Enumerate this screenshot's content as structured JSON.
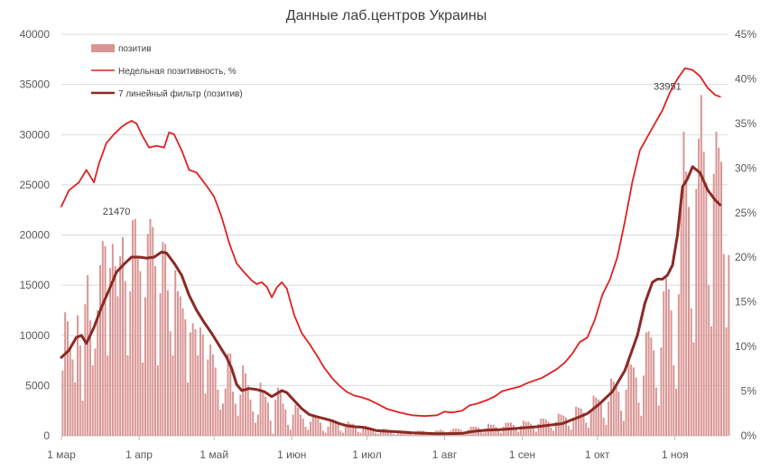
{
  "chart_data": {
    "type": "bar",
    "title": "Данные лаб.центров Украины",
    "x_tick_labels": [
      "1 мар",
      "1 апр",
      "1 май",
      "1 июн",
      "1 июл",
      "1 авг",
      "1 сен",
      "1 окт",
      "1 ноя"
    ],
    "y_left": {
      "ylim": [
        0,
        40000
      ],
      "ticks": [
        "0",
        "5000",
        "10000",
        "15000",
        "20000",
        "25000",
        "30000",
        "35000",
        "40000"
      ]
    },
    "y_right": {
      "ylim": [
        0,
        45
      ],
      "ticks": [
        "0%",
        "5%",
        "10%",
        "15%",
        "20%",
        "25%",
        "30%",
        "35%",
        "40%",
        "45%"
      ]
    },
    "legend": {
      "bars": "позитив",
      "weekly": "Недельная позитивность, %",
      "filter": "7 линейный фильтр (позитив)"
    },
    "colors": {
      "bars": "#d99594",
      "weekly": "#e02020",
      "filter": "#8b2a24",
      "grid": "#d9d9d9"
    },
    "annotations": [
      {
        "day": 22,
        "value": 21470,
        "label": "21470"
      },
      {
        "day": 242,
        "value": 33951,
        "label": "33951"
      }
    ],
    "series": [
      {
        "name": "позитив",
        "kind": "bar",
        "axis": "left",
        "day_start": 0,
        "values": [
          6500,
          12300,
          11400,
          8800,
          7600,
          5300,
          12000,
          9000,
          3500,
          13100,
          16000,
          11500,
          7000,
          8700,
          12500,
          17000,
          19400,
          18900,
          8000,
          16700,
          19100,
          16900,
          13900,
          17900,
          19800,
          15400,
          8000,
          14400,
          21470,
          21600,
          17700,
          16400,
          7300,
          13800,
          20100,
          21600,
          20800,
          16900,
          7000,
          14200,
          19300,
          19100,
          14500,
          10400,
          8000,
          16500,
          14400,
          13900,
          12700,
          11600,
          5300,
          10300,
          11200,
          10600,
          8000,
          10800,
          10100,
          4200,
          7600,
          9100,
          8100,
          6800,
          4600,
          2600,
          3200,
          4700,
          8200,
          8200,
          4400,
          3200,
          2000,
          4100,
          7000,
          6200,
          5000,
          3600,
          2400,
          1300,
          2100,
          5300,
          4400,
          3900,
          3300,
          1500,
          200,
          3600,
          4800,
          4300,
          3200,
          2600,
          1100,
          600,
          2100,
          3100,
          2800,
          2100,
          1700,
          900,
          600,
          1400,
          2100,
          1800,
          1700,
          1300,
          500,
          300,
          900,
          1600,
          1400,
          1500,
          1200,
          500,
          300,
          900,
          1400,
          1200,
          1200,
          1000,
          400,
          300,
          700,
          1000,
          900,
          800,
          700,
          300,
          200,
          500,
          700,
          700,
          600,
          500,
          200,
          100,
          400,
          500,
          500,
          500,
          400,
          200,
          100,
          400,
          500,
          500,
          500,
          400,
          200,
          100,
          300,
          500,
          500,
          600,
          500,
          300,
          200,
          500,
          700,
          700,
          700,
          600,
          300,
          200,
          600,
          900,
          900,
          900,
          800,
          400,
          300,
          700,
          1200,
          1100,
          1100,
          900,
          500,
          300,
          900,
          1300,
          1300,
          1300,
          1100,
          600,
          400,
          1000,
          1500,
          1400,
          1400,
          1200,
          700,
          400,
          1200,
          1700,
          1700,
          1600,
          1400,
          800,
          500,
          1400,
          2200,
          2100,
          2000,
          1800,
          1000,
          600,
          1800,
          2900,
          2800,
          2700,
          2300,
          1300,
          800,
          2500,
          4000,
          3800,
          3600,
          3100,
          1800,
          1100,
          3400,
          5700,
          5400,
          5100,
          4400,
          2500,
          1500,
          4600,
          7500,
          7100,
          6800,
          5800,
          3300,
          2000,
          6000,
          10300,
          10400,
          9800,
          8500,
          4800,
          3000,
          8800,
          14400,
          15700,
          14600,
          12500,
          7000,
          4700,
          14100,
          24100,
          30300,
          26300,
          22800,
          12700,
          9300,
          24600,
          29600,
          33951,
          28300,
          25200,
          15000,
          10900,
          26100,
          30300,
          28700,
          27300,
          18100,
          10800,
          18000
        ]
      },
      {
        "name": "Недельная позитивность, %",
        "kind": "line",
        "axis": "right",
        "points": [
          [
            0,
            25.7
          ],
          [
            3,
            27.5
          ],
          [
            7,
            28.4
          ],
          [
            10,
            29.8
          ],
          [
            13,
            28.4
          ],
          [
            15,
            30.5
          ],
          [
            18,
            32.8
          ],
          [
            21,
            33.8
          ],
          [
            24,
            34.6
          ],
          [
            26,
            35.0
          ],
          [
            28,
            35.3
          ],
          [
            30,
            35.0
          ],
          [
            32,
            33.8
          ],
          [
            35,
            32.3
          ],
          [
            38,
            32.5
          ],
          [
            41,
            32.3
          ],
          [
            43,
            34.0
          ],
          [
            45,
            33.8
          ],
          [
            48,
            32.0
          ],
          [
            51,
            29.8
          ],
          [
            54,
            29.5
          ],
          [
            58,
            28.0
          ],
          [
            61,
            26.8
          ],
          [
            64,
            24.5
          ],
          [
            67,
            21.6
          ],
          [
            70,
            19.3
          ],
          [
            73,
            18.3
          ],
          [
            76,
            17.4
          ],
          [
            78,
            17.0
          ],
          [
            80,
            17.2
          ],
          [
            82,
            16.7
          ],
          [
            84,
            15.5
          ],
          [
            86,
            16.6
          ],
          [
            88,
            17.2
          ],
          [
            90,
            16.5
          ],
          [
            93,
            13.5
          ],
          [
            96,
            11.5
          ],
          [
            99,
            10.3
          ],
          [
            102,
            9.0
          ],
          [
            105,
            7.6
          ],
          [
            108,
            6.5
          ],
          [
            111,
            5.6
          ],
          [
            114,
            4.9
          ],
          [
            117,
            4.5
          ],
          [
            120,
            4.3
          ],
          [
            123,
            4.0
          ],
          [
            126,
            3.6
          ],
          [
            130,
            3.0
          ],
          [
            135,
            2.6
          ],
          [
            140,
            2.3
          ],
          [
            145,
            2.2
          ],
          [
            150,
            2.3
          ],
          [
            153,
            2.7
          ],
          [
            156,
            2.6
          ],
          [
            160,
            2.8
          ],
          [
            163,
            3.4
          ],
          [
            166,
            3.6
          ],
          [
            170,
            4.0
          ],
          [
            173,
            4.4
          ],
          [
            176,
            5.0
          ],
          [
            180,
            5.3
          ],
          [
            183,
            5.5
          ],
          [
            186,
            5.9
          ],
          [
            189,
            6.2
          ],
          [
            192,
            6.5
          ],
          [
            195,
            7.0
          ],
          [
            198,
            7.5
          ],
          [
            201,
            8.2
          ],
          [
            204,
            9.2
          ],
          [
            207,
            10.5
          ],
          [
            210,
            11.0
          ],
          [
            213,
            13.0
          ],
          [
            216,
            15.8
          ],
          [
            219,
            17.5
          ],
          [
            222,
            20.0
          ],
          [
            225,
            24.0
          ],
          [
            228,
            28.5
          ],
          [
            231,
            32.0
          ],
          [
            234,
            33.5
          ],
          [
            237,
            35.0
          ],
          [
            240,
            36.5
          ],
          [
            243,
            38.5
          ],
          [
            246,
            40.0
          ],
          [
            249,
            41.2
          ],
          [
            252,
            41.0
          ],
          [
            255,
            40.3
          ],
          [
            258,
            39.0
          ],
          [
            261,
            38.2
          ],
          [
            263,
            38.0
          ]
        ]
      },
      {
        "name": "7 линейный фильтр (позитив)",
        "kind": "line",
        "axis": "left",
        "points": [
          [
            0,
            7800
          ],
          [
            3,
            8500
          ],
          [
            6,
            9800
          ],
          [
            8,
            10000
          ],
          [
            10,
            9200
          ],
          [
            13,
            10800
          ],
          [
            16,
            12800
          ],
          [
            19,
            14500
          ],
          [
            22,
            16300
          ],
          [
            25,
            17100
          ],
          [
            28,
            17800
          ],
          [
            31,
            17800
          ],
          [
            34,
            17700
          ],
          [
            37,
            17800
          ],
          [
            40,
            18300
          ],
          [
            42,
            18200
          ],
          [
            45,
            17200
          ],
          [
            48,
            16000
          ],
          [
            51,
            14000
          ],
          [
            54,
            12500
          ],
          [
            57,
            11300
          ],
          [
            60,
            10200
          ],
          [
            63,
            9000
          ],
          [
            66,
            7800
          ],
          [
            68,
            6700
          ],
          [
            70,
            5100
          ],
          [
            72,
            4500
          ],
          [
            75,
            4700
          ],
          [
            78,
            4600
          ],
          [
            81,
            4400
          ],
          [
            84,
            3900
          ],
          [
            86,
            4200
          ],
          [
            88,
            4500
          ],
          [
            90,
            4300
          ],
          [
            93,
            3500
          ],
          [
            96,
            2700
          ],
          [
            99,
            2100
          ],
          [
            102,
            1900
          ],
          [
            105,
            1700
          ],
          [
            108,
            1500
          ],
          [
            111,
            1200
          ],
          [
            114,
            1000
          ],
          [
            117,
            900
          ],
          [
            120,
            850
          ],
          [
            123,
            700
          ],
          [
            126,
            500
          ],
          [
            130,
            450
          ],
          [
            135,
            380
          ],
          [
            140,
            300
          ],
          [
            145,
            250
          ],
          [
            150,
            200
          ],
          [
            155,
            220
          ],
          [
            160,
            230
          ],
          [
            163,
            380
          ],
          [
            166,
            480
          ],
          [
            170,
            560
          ],
          [
            175,
            600
          ],
          [
            180,
            700
          ],
          [
            185,
            800
          ],
          [
            190,
            900
          ],
          [
            195,
            1050
          ],
          [
            200,
            1200
          ],
          [
            205,
            1700
          ],
          [
            210,
            2200
          ],
          [
            215,
            3200
          ],
          [
            220,
            4400
          ],
          [
            225,
            6500
          ],
          [
            230,
            10000
          ],
          [
            233,
            13200
          ],
          [
            236,
            15300
          ],
          [
            238,
            15600
          ],
          [
            240,
            15600
          ],
          [
            242,
            16000
          ],
          [
            244,
            17000
          ],
          [
            246,
            20000
          ],
          [
            248,
            24800
          ],
          [
            250,
            25600
          ],
          [
            252,
            26800
          ],
          [
            255,
            26200
          ],
          [
            258,
            24500
          ],
          [
            261,
            23500
          ],
          [
            263,
            23000
          ]
        ]
      }
    ]
  }
}
